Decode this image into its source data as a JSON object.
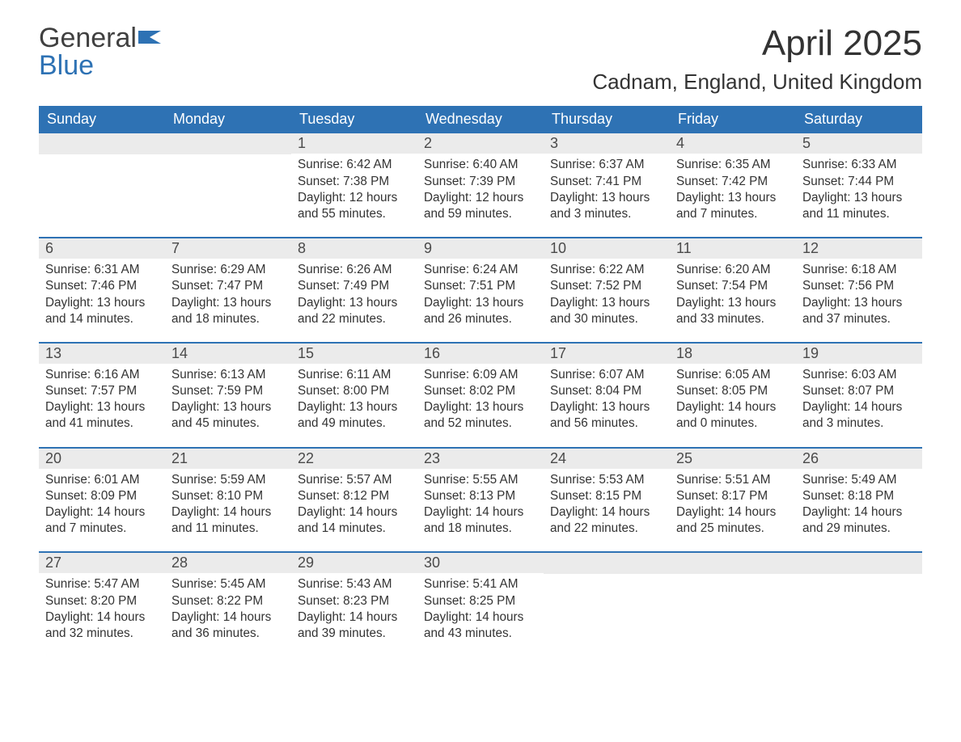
{
  "logo": {
    "word1": "General",
    "word2": "Blue",
    "flag_color": "#2e72b4",
    "text_color": "#404040"
  },
  "title": "April 2025",
  "location": "Cadnam, England, United Kingdom",
  "colors": {
    "header_bg": "#2e72b4",
    "header_text": "#ffffff",
    "daynum_bg": "#ebebeb",
    "daynum_text": "#4a4a4a",
    "body_text": "#333333",
    "week_divider": "#2e72b4",
    "page_bg": "#ffffff"
  },
  "typography": {
    "title_fontsize": 44,
    "location_fontsize": 26,
    "dow_fontsize": 18,
    "daynum_fontsize": 18,
    "body_fontsize": 15.3,
    "logo_fontsize": 34
  },
  "layout": {
    "columns": 7,
    "rows": 5,
    "first_day_column_index": 2
  },
  "days_of_week": [
    "Sunday",
    "Monday",
    "Tuesday",
    "Wednesday",
    "Thursday",
    "Friday",
    "Saturday"
  ],
  "weeks": [
    [
      null,
      null,
      {
        "n": "1",
        "sunrise": "6:42 AM",
        "sunset": "7:38 PM",
        "dl1": "12 hours",
        "dl2": "and 55 minutes."
      },
      {
        "n": "2",
        "sunrise": "6:40 AM",
        "sunset": "7:39 PM",
        "dl1": "12 hours",
        "dl2": "and 59 minutes."
      },
      {
        "n": "3",
        "sunrise": "6:37 AM",
        "sunset": "7:41 PM",
        "dl1": "13 hours",
        "dl2": "and 3 minutes."
      },
      {
        "n": "4",
        "sunrise": "6:35 AM",
        "sunset": "7:42 PM",
        "dl1": "13 hours",
        "dl2": "and 7 minutes."
      },
      {
        "n": "5",
        "sunrise": "6:33 AM",
        "sunset": "7:44 PM",
        "dl1": "13 hours",
        "dl2": "and 11 minutes."
      }
    ],
    [
      {
        "n": "6",
        "sunrise": "6:31 AM",
        "sunset": "7:46 PM",
        "dl1": "13 hours",
        "dl2": "and 14 minutes."
      },
      {
        "n": "7",
        "sunrise": "6:29 AM",
        "sunset": "7:47 PM",
        "dl1": "13 hours",
        "dl2": "and 18 minutes."
      },
      {
        "n": "8",
        "sunrise": "6:26 AM",
        "sunset": "7:49 PM",
        "dl1": "13 hours",
        "dl2": "and 22 minutes."
      },
      {
        "n": "9",
        "sunrise": "6:24 AM",
        "sunset": "7:51 PM",
        "dl1": "13 hours",
        "dl2": "and 26 minutes."
      },
      {
        "n": "10",
        "sunrise": "6:22 AM",
        "sunset": "7:52 PM",
        "dl1": "13 hours",
        "dl2": "and 30 minutes."
      },
      {
        "n": "11",
        "sunrise": "6:20 AM",
        "sunset": "7:54 PM",
        "dl1": "13 hours",
        "dl2": "and 33 minutes."
      },
      {
        "n": "12",
        "sunrise": "6:18 AM",
        "sunset": "7:56 PM",
        "dl1": "13 hours",
        "dl2": "and 37 minutes."
      }
    ],
    [
      {
        "n": "13",
        "sunrise": "6:16 AM",
        "sunset": "7:57 PM",
        "dl1": "13 hours",
        "dl2": "and 41 minutes."
      },
      {
        "n": "14",
        "sunrise": "6:13 AM",
        "sunset": "7:59 PM",
        "dl1": "13 hours",
        "dl2": "and 45 minutes."
      },
      {
        "n": "15",
        "sunrise": "6:11 AM",
        "sunset": "8:00 PM",
        "dl1": "13 hours",
        "dl2": "and 49 minutes."
      },
      {
        "n": "16",
        "sunrise": "6:09 AM",
        "sunset": "8:02 PM",
        "dl1": "13 hours",
        "dl2": "and 52 minutes."
      },
      {
        "n": "17",
        "sunrise": "6:07 AM",
        "sunset": "8:04 PM",
        "dl1": "13 hours",
        "dl2": "and 56 minutes."
      },
      {
        "n": "18",
        "sunrise": "6:05 AM",
        "sunset": "8:05 PM",
        "dl1": "14 hours",
        "dl2": "and 0 minutes."
      },
      {
        "n": "19",
        "sunrise": "6:03 AM",
        "sunset": "8:07 PM",
        "dl1": "14 hours",
        "dl2": "and 3 minutes."
      }
    ],
    [
      {
        "n": "20",
        "sunrise": "6:01 AM",
        "sunset": "8:09 PM",
        "dl1": "14 hours",
        "dl2": "and 7 minutes."
      },
      {
        "n": "21",
        "sunrise": "5:59 AM",
        "sunset": "8:10 PM",
        "dl1": "14 hours",
        "dl2": "and 11 minutes."
      },
      {
        "n": "22",
        "sunrise": "5:57 AM",
        "sunset": "8:12 PM",
        "dl1": "14 hours",
        "dl2": "and 14 minutes."
      },
      {
        "n": "23",
        "sunrise": "5:55 AM",
        "sunset": "8:13 PM",
        "dl1": "14 hours",
        "dl2": "and 18 minutes."
      },
      {
        "n": "24",
        "sunrise": "5:53 AM",
        "sunset": "8:15 PM",
        "dl1": "14 hours",
        "dl2": "and 22 minutes."
      },
      {
        "n": "25",
        "sunrise": "5:51 AM",
        "sunset": "8:17 PM",
        "dl1": "14 hours",
        "dl2": "and 25 minutes."
      },
      {
        "n": "26",
        "sunrise": "5:49 AM",
        "sunset": "8:18 PM",
        "dl1": "14 hours",
        "dl2": "and 29 minutes."
      }
    ],
    [
      {
        "n": "27",
        "sunrise": "5:47 AM",
        "sunset": "8:20 PM",
        "dl1": "14 hours",
        "dl2": "and 32 minutes."
      },
      {
        "n": "28",
        "sunrise": "5:45 AM",
        "sunset": "8:22 PM",
        "dl1": "14 hours",
        "dl2": "and 36 minutes."
      },
      {
        "n": "29",
        "sunrise": "5:43 AM",
        "sunset": "8:23 PM",
        "dl1": "14 hours",
        "dl2": "and 39 minutes."
      },
      {
        "n": "30",
        "sunrise": "5:41 AM",
        "sunset": "8:25 PM",
        "dl1": "14 hours",
        "dl2": "and 43 minutes."
      },
      null,
      null,
      null
    ]
  ],
  "labels": {
    "sunrise": "Sunrise:",
    "sunset": "Sunset:",
    "daylight": "Daylight:"
  }
}
